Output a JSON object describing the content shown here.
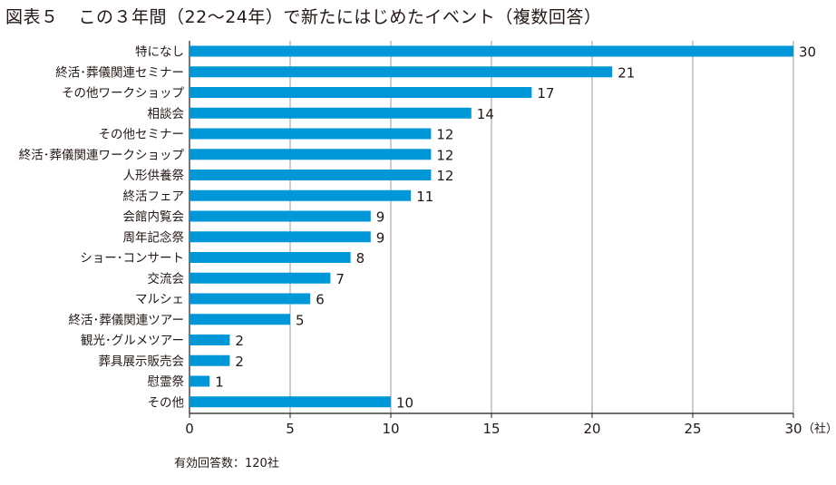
{
  "title": {
    "figure_label": "図表５",
    "text": "この３年間（22〜24年）で新たにはじめたイベント（複数回答）"
  },
  "note": "有効回答数：120社",
  "colors": {
    "bar": "#0097d8",
    "grid": "#999999",
    "axis": "#231815"
  },
  "chart_data": {
    "type": "bar",
    "orientation": "horizontal",
    "categories": [
      "特になし",
      "終活･葬儀関連セミナー",
      "その他ワークショップ",
      "相談会",
      "その他セミナー",
      "終活･葬儀関連ワークショップ",
      "人形供養祭",
      "終活フェア",
      "会館内覧会",
      "周年記念祭",
      "ショー･コンサート",
      "交流会",
      "マルシェ",
      "終活･葬儀関連ツアー",
      "観光･グルメツアー",
      "葬具展示販売会",
      "慰霊祭",
      "その他"
    ],
    "values": [
      30,
      21,
      17,
      14,
      12,
      12,
      12,
      11,
      9,
      9,
      8,
      7,
      6,
      5,
      2,
      2,
      1,
      10
    ],
    "xlim": [
      0,
      30
    ],
    "xticks": [
      0,
      5,
      10,
      15,
      20,
      25,
      30
    ],
    "unit_label": "（社）",
    "grid": true,
    "data_labels": true
  }
}
